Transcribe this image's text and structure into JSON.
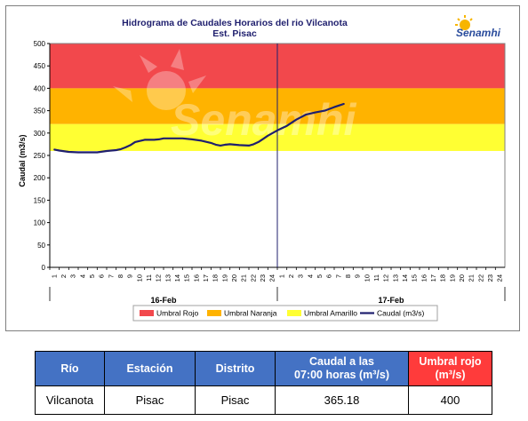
{
  "chart_data": {
    "type": "line",
    "title": "Hidrograma de Caudales Horarios del rio Vilcanota",
    "subtitle": "Est. Pisac",
    "logo_text": "Senamhi",
    "ylabel": "Caudal  (m3/s)",
    "ylim": [
      0,
      500
    ],
    "yticks": [
      0,
      50,
      100,
      150,
      200,
      250,
      300,
      350,
      400,
      450,
      500
    ],
    "x_hour_ticks": [
      "1",
      "2",
      "3",
      "4",
      "5",
      "6",
      "7",
      "8",
      "9",
      "10",
      "11",
      "12",
      "13",
      "14",
      "15",
      "16",
      "17",
      "18",
      "19",
      "20",
      "21",
      "22",
      "23",
      "24",
      "1",
      "2",
      "3",
      "4",
      "5",
      "6",
      "7",
      "8",
      "9",
      "10",
      "11",
      "12",
      "13",
      "14",
      "15",
      "16",
      "17",
      "18",
      "19",
      "20",
      "21",
      "22",
      "23",
      "24"
    ],
    "x_day_labels": [
      "16-Feb",
      "17-Feb"
    ],
    "grid": false,
    "legend_position": "bottom",
    "thresholds": [
      {
        "name": "Umbral Rojo",
        "from": 400,
        "to": 500,
        "color": "#f2484c"
      },
      {
        "name": "Umbral Naranja",
        "from": 320,
        "to": 400,
        "color": "#ffb300"
      },
      {
        "name": "Umbral Amarillo",
        "from": 260,
        "to": 320,
        "color": "#ffff33"
      }
    ],
    "series": [
      {
        "name": "Caudal (m3/s)",
        "color": "#1f1f6e",
        "x": [
          0.5,
          1,
          2,
          3,
          4,
          5,
          6,
          7,
          7.5,
          8,
          8.5,
          9,
          10,
          11,
          11.5,
          12,
          13,
          14,
          15,
          16,
          17,
          17.5,
          18,
          18.5,
          19,
          20,
          21,
          21.5,
          22,
          22.5,
          23,
          24,
          25,
          26,
          27,
          28,
          29,
          30,
          31
        ],
        "values": [
          263,
          261,
          258,
          257,
          257,
          257,
          260,
          262,
          264,
          268,
          273,
          280,
          285,
          285,
          286,
          288,
          288,
          288,
          286,
          283,
          278,
          274,
          272,
          274,
          275,
          273,
          272,
          275,
          280,
          287,
          294,
          306,
          316,
          330,
          341,
          346,
          350,
          358,
          365
        ]
      }
    ]
  },
  "table": {
    "headers": {
      "rio": "Río",
      "estacion": "Estación",
      "distrito": "Distrito",
      "caudal_line1": "Caudal a las",
      "caudal_line2": "07:00 horas (m³/s)",
      "umbral_line1": "Umbral rojo",
      "umbral_line2": "(m³/s)"
    },
    "row": {
      "rio": "Vilcanota",
      "estacion": "Pisac",
      "distrito": "Pisac",
      "caudal": "365.18",
      "umbral": "400"
    }
  }
}
